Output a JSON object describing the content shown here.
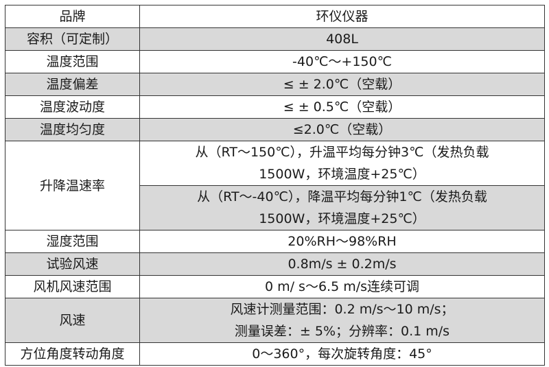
{
  "table": {
    "header": {
      "label": "品牌",
      "value": "环仪仪器"
    },
    "rows": [
      {
        "label": "容积（可定制）",
        "value": "408L",
        "shaded": true
      },
      {
        "label": "温度范围",
        "value": "-40℃～+150℃",
        "shaded": false
      },
      {
        "label": "温度偏差",
        "value": "≤ ± 2.0℃（空载）",
        "shaded": true
      },
      {
        "label": "温度波动度",
        "value": "≤ ± 0.5℃（空载）",
        "shaded": false
      },
      {
        "label": "温度均匀度",
        "value": "≤2.0℃（空载）",
        "shaded": true
      }
    ],
    "rate": {
      "label": "升降温速率",
      "heating": [
        "从（RT～150℃），升温平均每分钟3℃（发热负载",
        "1500W，环境温度+25℃）"
      ],
      "cooling": [
        "从（RT～-40℃），降温平均每分钟1℃（发热负载",
        "1500W，环境温度+25℃）"
      ]
    },
    "rows2": [
      {
        "label": "湿度范围",
        "value": "20%RH～98%RH",
        "shaded": false
      },
      {
        "label": "试验风速",
        "value": "0.8m/s ± 0.2m/s",
        "shaded": true
      },
      {
        "label": "风机风速范围",
        "value": "0 m/ s～6.5 m/s连续可调",
        "shaded": false
      }
    ],
    "wind": {
      "label": "风速",
      "lines": [
        "风速计测量范围：0.2 m/s～10 m/s；",
        "测量误差：± 5%；分辨率：0.1 m/s"
      ]
    },
    "rotation": {
      "label": "方位角度转动角度",
      "value": "0～360°，每次旋转角度：45°"
    },
    "colors": {
      "shade": "#d9d9d9",
      "border": "#333333"
    }
  }
}
